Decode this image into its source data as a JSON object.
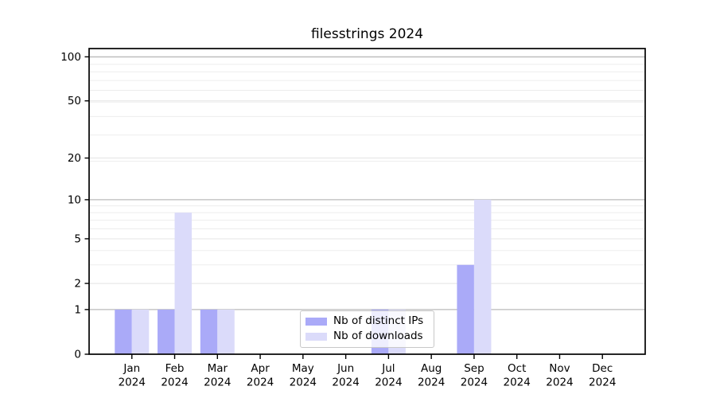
{
  "title": "filesstrings 2024",
  "legend": {
    "items": [
      {
        "label": "Nb of distinct IPs",
        "color": "#aaaaf8"
      },
      {
        "label": "Nb of downloads",
        "color": "#dbdbfa"
      }
    ]
  },
  "chart_data": {
    "type": "bar",
    "title": "filesstrings 2024",
    "categories": [
      "Jan 2024",
      "Feb 2024",
      "Mar 2024",
      "Apr 2024",
      "May 2024",
      "Jun 2024",
      "Jul 2024",
      "Aug 2024",
      "Sep 2024",
      "Oct 2024",
      "Nov 2024",
      "Dec 2024"
    ],
    "x_tick_line1": [
      "Jan",
      "Feb",
      "Mar",
      "Apr",
      "May",
      "Jun",
      "Jul",
      "Aug",
      "Sep",
      "Oct",
      "Nov",
      "Dec"
    ],
    "x_tick_line2": [
      "2024",
      "2024",
      "2024",
      "2024",
      "2024",
      "2024",
      "2024",
      "2024",
      "2024",
      "2024",
      "2024",
      "2024"
    ],
    "series": [
      {
        "name": "Nb of distinct IPs",
        "color": "#aaaaf8",
        "values": [
          1,
          1,
          1,
          0,
          0,
          0,
          1,
          0,
          3,
          0,
          0,
          0
        ]
      },
      {
        "name": "Nb of downloads",
        "color": "#dbdbfa",
        "values": [
          1,
          8,
          1,
          0,
          0,
          0,
          1,
          0,
          10,
          0,
          0,
          0
        ]
      }
    ],
    "y_axis": {
      "scale": "log10(1+v)",
      "major_ticks": [
        0,
        1,
        2,
        5,
        10,
        20,
        50,
        100
      ],
      "emphasized_gridlines": [
        1,
        10,
        100
      ],
      "minor_gridlines": [
        3,
        4,
        6,
        7,
        8,
        9,
        19,
        29,
        39,
        49,
        59,
        69,
        79,
        89,
        99
      ],
      "ylim": [
        0,
        114
      ]
    },
    "grid": "both",
    "legend_position": "lower center inside axes"
  },
  "colors": {
    "background": "#ffffff",
    "axis": "#000000",
    "text": "#000000",
    "grid_major_dark": "#bbbbbb",
    "grid_major_light": "#e4e4e4",
    "grid_minor": "#ededed",
    "legend_border": "#c8c8c8",
    "legend_background": "rgba(255,255,255,0.8)"
  }
}
